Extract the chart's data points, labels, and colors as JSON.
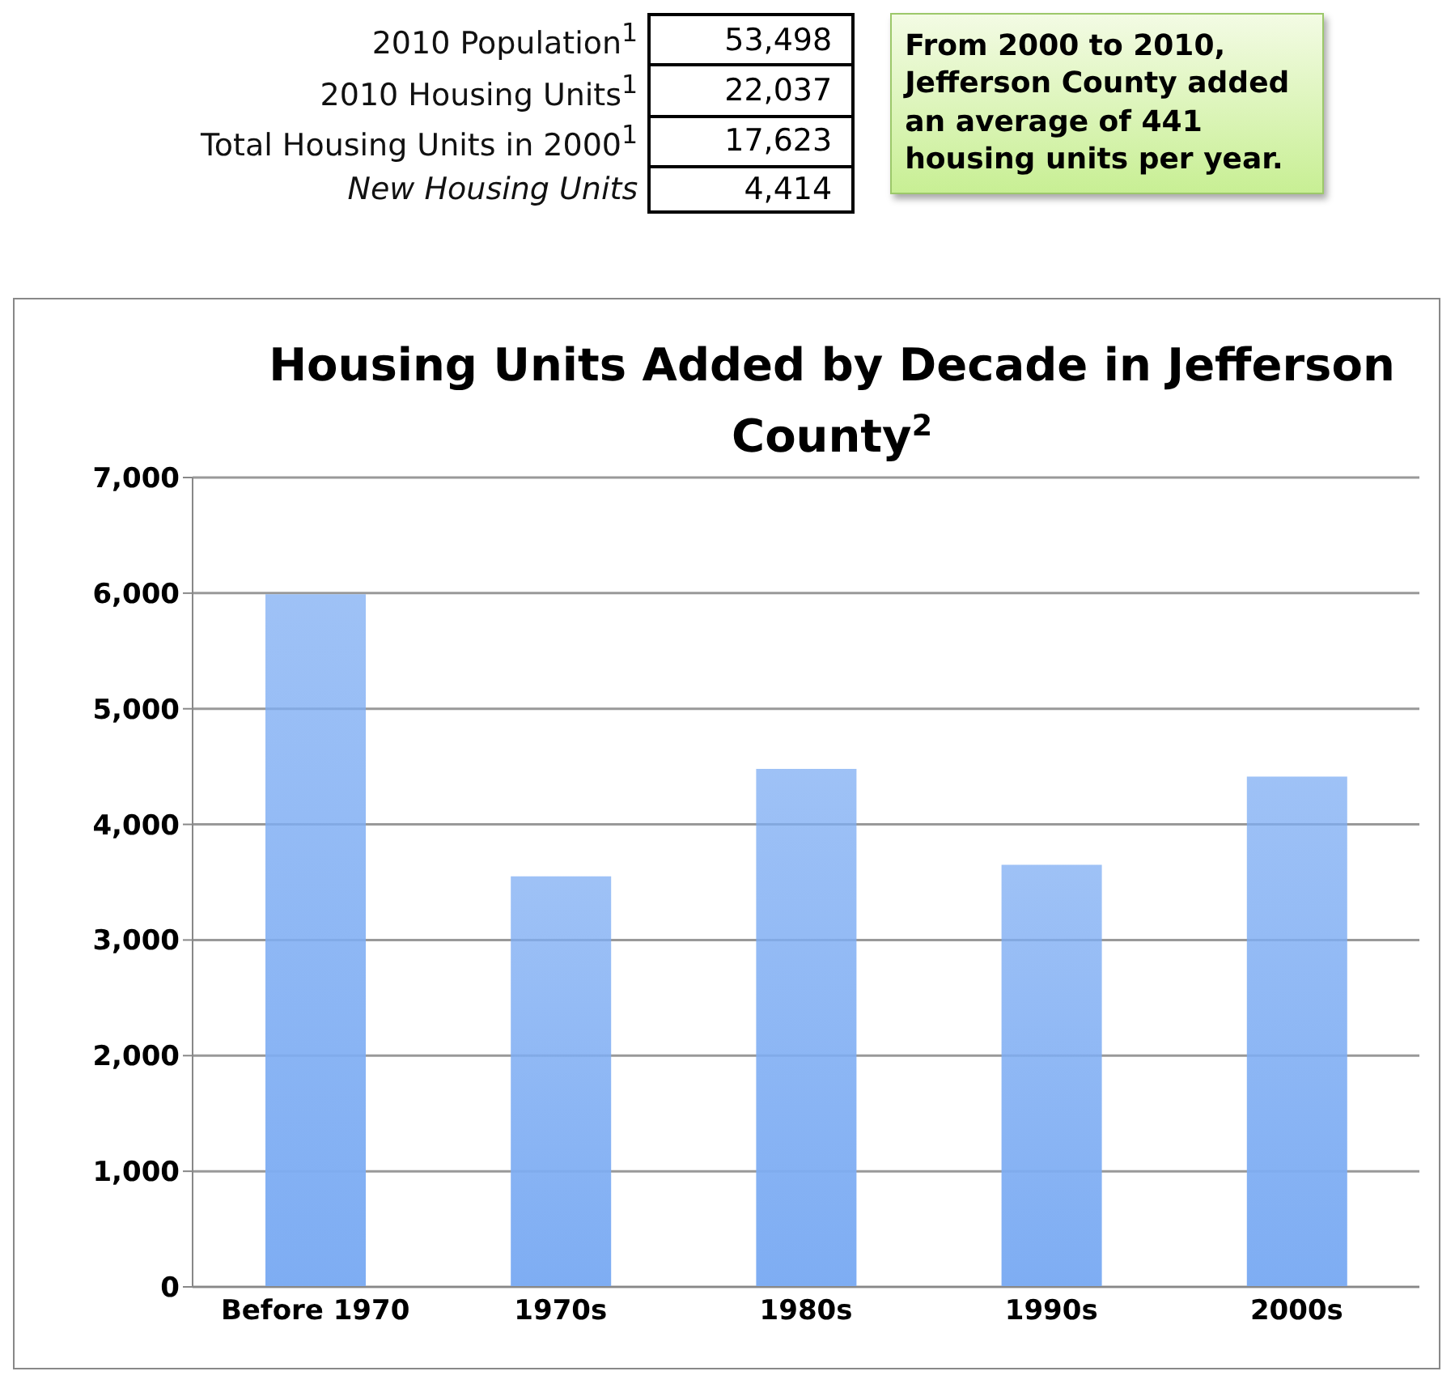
{
  "chart_data": {
    "type": "bar",
    "title": "Housing Units Added by Decade in Jefferson County$^{2}$",
    "categories": [
      "Before 1970",
      "1970s",
      "1980s",
      "1990s",
      "2000s"
    ],
    "values": [
      5990,
      3550,
      4480,
      3650,
      4414
    ],
    "color": "#7eadf3",
    "ylim": [
      0,
      7000
    ],
    "yticks": [
      {
        "value": 0,
        "label": "0"
      },
      {
        "value": 1000,
        "label": "1,000"
      },
      {
        "value": 2000,
        "label": "2,000"
      },
      {
        "value": 3000,
        "label": "3,000"
      },
      {
        "value": 4000,
        "label": "4,000"
      },
      {
        "value": 5000,
        "label": "5,000"
      },
      {
        "value": 6000,
        "label": "6,000"
      },
      {
        "value": 7000,
        "label": "7,000"
      }
    ],
    "grid": "y",
    "annotations": [
      "2010 Population$^{1}$",
      "53,498",
      "2010 Housing Units$^{1}$",
      "22,037",
      "Total Housing Units in 2000$^{1}$",
      "17,623",
      "New Housing Units",
      "4,414",
      "From 2000 to 2010, Jefferson County added an average of 441 housing units per year."
    ]
  }
}
